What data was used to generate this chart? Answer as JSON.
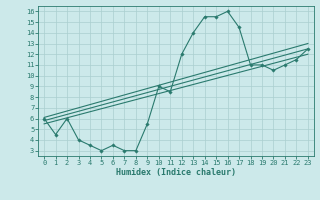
{
  "title": "",
  "xlabel": "Humidex (Indice chaleur)",
  "bg_color": "#cce9ea",
  "grid_color": "#aacfcf",
  "line_color": "#2a7a6e",
  "xlim": [
    -0.5,
    23.5
  ],
  "ylim": [
    2.5,
    16.5
  ],
  "xticks": [
    0,
    1,
    2,
    3,
    4,
    5,
    6,
    7,
    8,
    9,
    10,
    11,
    12,
    13,
    14,
    15,
    16,
    17,
    18,
    19,
    20,
    21,
    22,
    23
  ],
  "yticks": [
    3,
    4,
    5,
    6,
    7,
    8,
    9,
    10,
    11,
    12,
    13,
    14,
    15,
    16
  ],
  "line1_x": [
    0,
    1,
    2,
    3,
    4,
    5,
    6,
    7,
    8,
    9,
    10,
    11,
    12,
    13,
    14,
    15,
    16,
    17,
    18,
    19,
    20,
    21,
    22,
    23
  ],
  "line1_y": [
    6.0,
    4.5,
    6.0,
    4.0,
    3.5,
    3.0,
    3.5,
    3.0,
    3.0,
    5.5,
    9.0,
    8.5,
    12.0,
    14.0,
    15.5,
    15.5,
    16.0,
    14.5,
    11.0,
    11.0,
    10.5,
    11.0,
    11.5,
    12.5
  ],
  "line2_x": [
    0,
    23
  ],
  "line2_y": [
    5.5,
    12.0
  ],
  "line3_x": [
    0,
    23
  ],
  "line3_y": [
    5.8,
    12.5
  ],
  "line4_x": [
    0,
    23
  ],
  "line4_y": [
    6.1,
    13.0
  ]
}
